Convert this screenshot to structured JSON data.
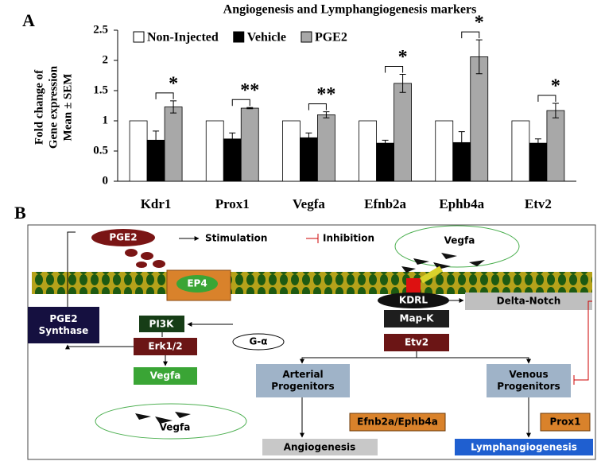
{
  "panel_labels": [
    "A",
    "B"
  ],
  "chart_data": {
    "type": "bar",
    "title": "Angiogenesis and Lymphangiogenesis markers",
    "ylabel": [
      "Fold change of",
      "Gene expression",
      "Mean ± SEM"
    ],
    "categories": [
      "Kdr1",
      "Prox1",
      "Vegfa",
      "Efnb2a",
      "Ephb4a",
      "Etv2"
    ],
    "series": [
      {
        "name": "Non-Injected",
        "color": "#ffffff",
        "values": [
          1,
          1,
          1,
          1,
          1,
          1
        ]
      },
      {
        "name": "Vehicle",
        "color": "#000000",
        "values": [
          0.68,
          0.7,
          0.72,
          0.63,
          0.64,
          0.63
        ],
        "errors": [
          0.15,
          0.1,
          0.08,
          0.05,
          0.18,
          0.07
        ]
      },
      {
        "name": "PGE2",
        "color": "#a8a8a8",
        "values": [
          1.23,
          1.21,
          1.1,
          1.62,
          2.06,
          1.17
        ],
        "errors": [
          0.1,
          0.01,
          0.05,
          0.15,
          0.28,
          0.12
        ]
      }
    ],
    "annotations": [
      "*",
      "**",
      "**",
      "*",
      "*",
      "*"
    ],
    "ylim": [
      0,
      2.5
    ],
    "yticks": [
      0,
      0.5,
      1,
      1.5,
      2,
      2.5
    ],
    "legend": "top"
  },
  "diagram": {
    "legend": {
      "stimulation": "Stimulation",
      "inhibition": "Inhibition"
    },
    "nodes": [
      {
        "lines": [
          "PGE2"
        ]
      },
      {
        "lines": [
          "Vegfa"
        ]
      },
      {
        "lines": [
          "EP4"
        ]
      },
      {
        "lines": [
          "KDRL"
        ]
      },
      {
        "lines": [
          "Delta-Notch"
        ]
      },
      {
        "lines": [
          "PGE2",
          "Synthase"
        ]
      },
      {
        "lines": [
          "PI3K"
        ]
      },
      {
        "lines": [
          "G-α"
        ]
      },
      {
        "lines": [
          "Erk1/2"
        ]
      },
      {
        "lines": [
          "Map-K"
        ]
      },
      {
        "lines": [
          "Etv2"
        ]
      },
      {
        "lines": [
          "Arterial",
          "Progenitors"
        ]
      },
      {
        "lines": [
          "Venous",
          "Progenitors"
        ]
      },
      {
        "lines": [
          "Vegfa"
        ]
      },
      {
        "lines": [
          "Vegfa"
        ]
      },
      {
        "lines": [
          "Efnb2a/Ephb4a"
        ]
      },
      {
        "lines": [
          "Prox1"
        ]
      },
      {
        "lines": [
          "Angiogenesis"
        ]
      },
      {
        "lines": [
          "Lymphangiogenesis"
        ]
      }
    ]
  }
}
